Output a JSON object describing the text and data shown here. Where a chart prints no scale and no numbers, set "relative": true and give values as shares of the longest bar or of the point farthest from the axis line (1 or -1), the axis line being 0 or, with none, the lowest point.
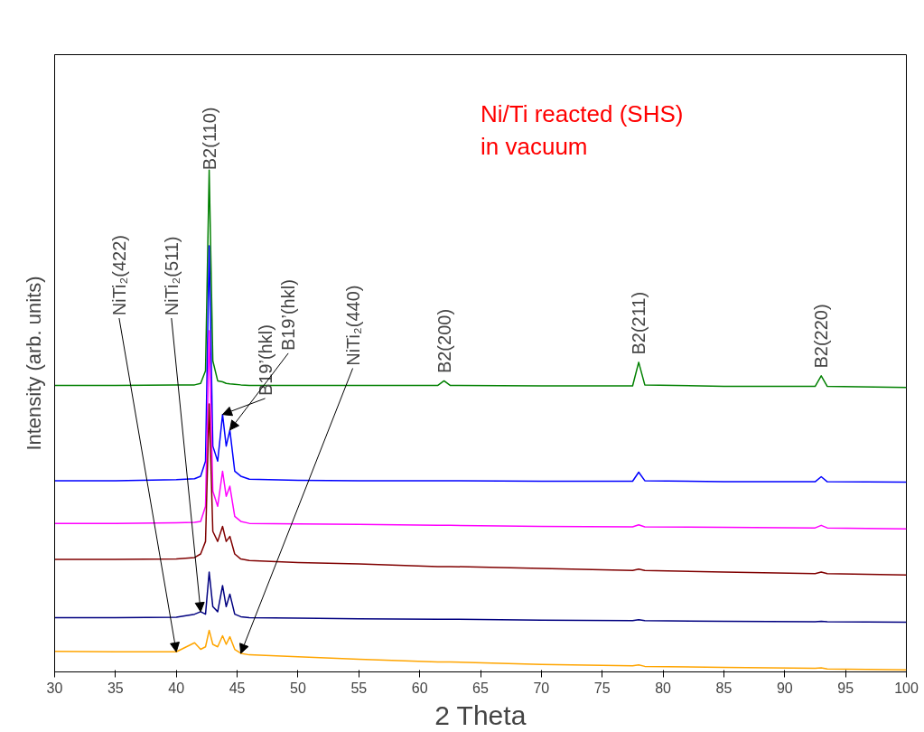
{
  "chart_data": {
    "type": "line",
    "relative": true,
    "xlabel": "2 Theta",
    "ylabel": "Intensity (arb. units)",
    "xlim": [
      30,
      100
    ],
    "xticks": [
      30,
      35,
      40,
      45,
      50,
      55,
      60,
      65,
      70,
      75,
      80,
      85,
      90,
      95,
      100
    ],
    "tick_labels": "x",
    "grid": false,
    "marker": "none",
    "line_style": "solid",
    "x": [
      30,
      35,
      40,
      41.5,
      42,
      42.4,
      42.7,
      43,
      43.4,
      43.8,
      44.1,
      44.4,
      44.8,
      45.3,
      46,
      50,
      55,
      61.5,
      62,
      62.5,
      70,
      77.5,
      78,
      78.5,
      85,
      92.5,
      93,
      93.5,
      100
    ],
    "series": [
      {
        "color": "#008000",
        "values": [
          0.571,
          0.571,
          0.572,
          0.572,
          0.575,
          0.6,
          1.0,
          0.62,
          0.58,
          0.578,
          0.575,
          0.574,
          0.573,
          0.572,
          0.571,
          0.571,
          0.571,
          0.571,
          0.58,
          0.571,
          0.57,
          0.57,
          0.617,
          0.572,
          0.569,
          0.569,
          0.59,
          0.569,
          0.567
        ]
      },
      {
        "color": "#0000ff",
        "values": [
          0.381,
          0.381,
          0.383,
          0.385,
          0.39,
          0.42,
          0.849,
          0.45,
          0.42,
          0.513,
          0.45,
          0.482,
          0.4,
          0.39,
          0.384,
          0.382,
          0.381,
          0.381,
          0.381,
          0.381,
          0.38,
          0.38,
          0.398,
          0.381,
          0.379,
          0.379,
          0.389,
          0.379,
          0.378
        ]
      },
      {
        "color": "#ff00ff",
        "values": [
          0.296,
          0.296,
          0.297,
          0.298,
          0.3,
          0.33,
          0.68,
          0.36,
          0.33,
          0.4,
          0.35,
          0.37,
          0.31,
          0.3,
          0.296,
          0.295,
          0.294,
          0.292,
          0.292,
          0.292,
          0.29,
          0.289,
          0.293,
          0.289,
          0.288,
          0.287,
          0.292,
          0.287,
          0.285
        ]
      },
      {
        "color": "#800000",
        "values": [
          0.224,
          0.224,
          0.225,
          0.228,
          0.235,
          0.26,
          0.534,
          0.28,
          0.26,
          0.29,
          0.26,
          0.27,
          0.235,
          0.225,
          0.222,
          0.218,
          0.215,
          0.21,
          0.21,
          0.21,
          0.206,
          0.202,
          0.205,
          0.202,
          0.199,
          0.196,
          0.199,
          0.196,
          0.193
        ]
      },
      {
        "color": "#000080",
        "values": [
          0.108,
          0.108,
          0.109,
          0.115,
          0.12,
          0.115,
          0.199,
          0.13,
          0.12,
          0.172,
          0.13,
          0.155,
          0.115,
          0.11,
          0.108,
          0.107,
          0.106,
          0.105,
          0.105,
          0.105,
          0.103,
          0.102,
          0.104,
          0.102,
          0.101,
          0.1,
          0.101,
          0.1,
          0.099
        ]
      },
      {
        "color": "#ffa500",
        "values": [
          0.041,
          0.04,
          0.04,
          0.058,
          0.045,
          0.05,
          0.083,
          0.055,
          0.05,
          0.072,
          0.055,
          0.07,
          0.045,
          0.037,
          0.034,
          0.03,
          0.025,
          0.02,
          0.02,
          0.02,
          0.015,
          0.012,
          0.014,
          0.011,
          0.009,
          0.007,
          0.008,
          0.006,
          0.004
        ]
      }
    ],
    "annotations": [
      {
        "text": "B2(110)",
        "x": 42.7,
        "y": 1.0
      },
      {
        "text": "B2(200)",
        "x": 62,
        "y": 0.58
      },
      {
        "text": "B2(211)",
        "x": 78,
        "y": 0.617
      },
      {
        "text": "B2(220)",
        "x": 93,
        "y": 0.59
      },
      {
        "text": "NiTi₂(422)",
        "x": 40,
        "y": 0.04
      },
      {
        "text": "NiTi₂(511)",
        "x": 42,
        "y": 0.12
      },
      {
        "text": "B19’(hkl)",
        "x": 43.8,
        "y": 0.513
      },
      {
        "text": "B19’(hkl)",
        "x": 44.4,
        "y": 0.482
      },
      {
        "text": "NiTi₂(440)",
        "x": 45.3,
        "y": 0.037
      },
      "Ni/Ti reacted (SHS)\nin vacuum"
    ]
  }
}
